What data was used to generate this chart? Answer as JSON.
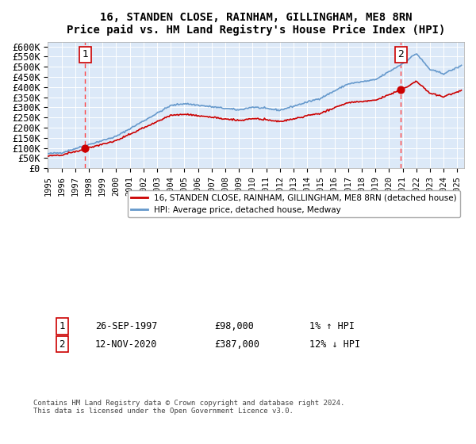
{
  "title": "16, STANDEN CLOSE, RAINHAM, GILLINGHAM, ME8 8RN",
  "subtitle": "Price paid vs. HM Land Registry's House Price Index (HPI)",
  "ylabel_ticks": [
    "£0",
    "£50K",
    "£100K",
    "£150K",
    "£200K",
    "£250K",
    "£300K",
    "£350K",
    "£400K",
    "£450K",
    "£500K",
    "£550K",
    "£600K"
  ],
  "ylim": [
    0,
    620000
  ],
  "xlim_start": 1995.0,
  "xlim_end": 2025.5,
  "bg_color": "#dce9f8",
  "plot_bg": "#dce9f8",
  "sale1_x": 1997.74,
  "sale1_y": 98000,
  "sale2_x": 2020.87,
  "sale2_y": 387000,
  "legend_label1": "16, STANDEN CLOSE, RAINHAM, GILLINGHAM, ME8 8RN (detached house)",
  "legend_label2": "HPI: Average price, detached house, Medway",
  "annotation1_label": "1",
  "annotation2_label": "2",
  "note1": "1   26-SEP-1997          £98,000          1% ↑ HPI",
  "note2": "2   12-NOV-2020          £387,000          12% ↓ HPI",
  "footer": "Contains HM Land Registry data © Crown copyright and database right 2024.\nThis data is licensed under the Open Government Licence v3.0.",
  "hpi_color": "#6699cc",
  "price_color": "#cc0000",
  "vline_color": "#ff4444"
}
